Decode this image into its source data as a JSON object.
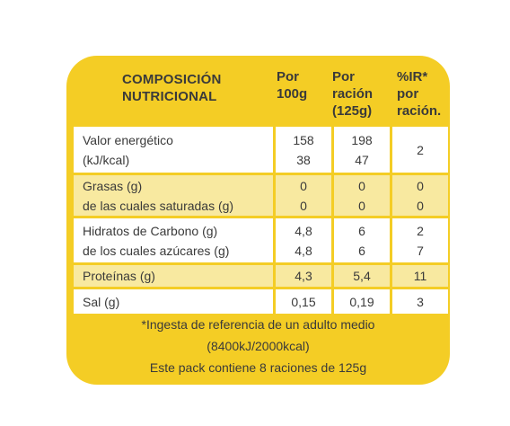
{
  "header": {
    "col_comp": [
      "COMPOSICIÓN",
      "NUTRICIONAL"
    ],
    "col_100": [
      "Por",
      "100g"
    ],
    "col_racion": [
      "Por",
      "ración",
      "(125g)"
    ],
    "col_ir": [
      "%IR*",
      "por",
      "ración."
    ]
  },
  "rows": [
    {
      "label": [
        "Valor energético",
        "(kJ/kcal)"
      ],
      "p100": [
        "158",
        "38"
      ],
      "racion": [
        "198",
        "47"
      ],
      "ir": [
        "2"
      ]
    },
    {
      "label": [
        "Grasas (g)",
        "de las cuales saturadas (g)"
      ],
      "p100": [
        "0",
        "0"
      ],
      "racion": [
        "0",
        "0"
      ],
      "ir": [
        "0",
        "0"
      ]
    },
    {
      "label": [
        "Hidratos de Carbono (g)",
        "de los cuales azúcares (g)"
      ],
      "p100": [
        "4,8",
        "4,8"
      ],
      "racion": [
        "6",
        "6"
      ],
      "ir": [
        "2",
        "7"
      ]
    },
    {
      "label": [
        "Proteínas (g)"
      ],
      "p100": [
        "4,3"
      ],
      "racion": [
        "5,4"
      ],
      "ir": [
        "11"
      ]
    },
    {
      "label": [
        "Sal (g)"
      ],
      "p100": [
        "0,15"
      ],
      "racion": [
        "0,19"
      ],
      "ir": [
        "3"
      ]
    }
  ],
  "footer": [
    "*Ingesta de referencia de un adulto medio",
    "(8400kJ/2000kcal)",
    "Este pack contiene 8 raciones de 125g"
  ],
  "colors": {
    "panel": "#f4cd25",
    "row_white": "#ffffff",
    "row_tint": "#f8e9a0",
    "text": "#3a3a3a"
  }
}
